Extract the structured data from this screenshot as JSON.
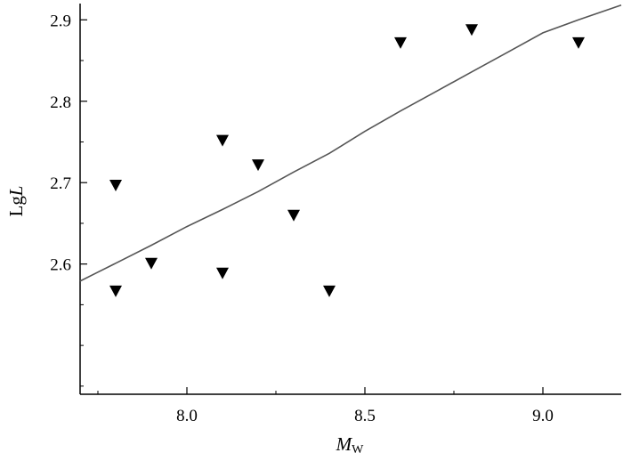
{
  "chart_data": {
    "type": "scatter",
    "title": "",
    "xlabel": {
      "main": "M",
      "sub": "W"
    },
    "ylabel": {
      "main": "Lg",
      "italic": "L"
    },
    "xlim": [
      7.7,
      9.22
    ],
    "ylim": [
      2.44,
      2.92
    ],
    "xticks": [
      "8.0",
      "8.5",
      "9.0"
    ],
    "yticks": [
      "2.6",
      "2.7",
      "2.8",
      "2.9"
    ],
    "grid": false,
    "marker_color": "#000000",
    "line_color": "#555555",
    "series": [
      {
        "type": "scatter",
        "marker": "triangle-down",
        "points": [
          {
            "x": 7.8,
            "y": 2.697
          },
          {
            "x": 7.8,
            "y": 2.567
          },
          {
            "x": 7.9,
            "y": 2.601
          },
          {
            "x": 8.1,
            "y": 2.752
          },
          {
            "x": 8.1,
            "y": 2.589
          },
          {
            "x": 8.2,
            "y": 2.722
          },
          {
            "x": 8.3,
            "y": 2.66
          },
          {
            "x": 8.4,
            "y": 2.567
          },
          {
            "x": 8.6,
            "y": 2.872
          },
          {
            "x": 8.8,
            "y": 2.888
          },
          {
            "x": 9.1,
            "y": 2.872
          }
        ]
      },
      {
        "type": "line",
        "points": [
          {
            "x": 7.7,
            "y": 2.579
          },
          {
            "x": 7.75,
            "y": 2.59
          },
          {
            "x": 7.8,
            "y": 2.601
          },
          {
            "x": 7.9,
            "y": 2.623
          },
          {
            "x": 8.0,
            "y": 2.646
          },
          {
            "x": 8.1,
            "y": 2.667
          },
          {
            "x": 8.2,
            "y": 2.689
          },
          {
            "x": 8.3,
            "y": 2.713
          },
          {
            "x": 8.4,
            "y": 2.736
          },
          {
            "x": 8.5,
            "y": 2.763
          },
          {
            "x": 8.6,
            "y": 2.788
          },
          {
            "x": 8.7,
            "y": 2.812
          },
          {
            "x": 8.8,
            "y": 2.836
          },
          {
            "x": 8.9,
            "y": 2.86
          },
          {
            "x": 9.0,
            "y": 2.884
          },
          {
            "x": 9.1,
            "y": 2.9
          },
          {
            "x": 9.22,
            "y": 2.918
          }
        ]
      }
    ]
  }
}
